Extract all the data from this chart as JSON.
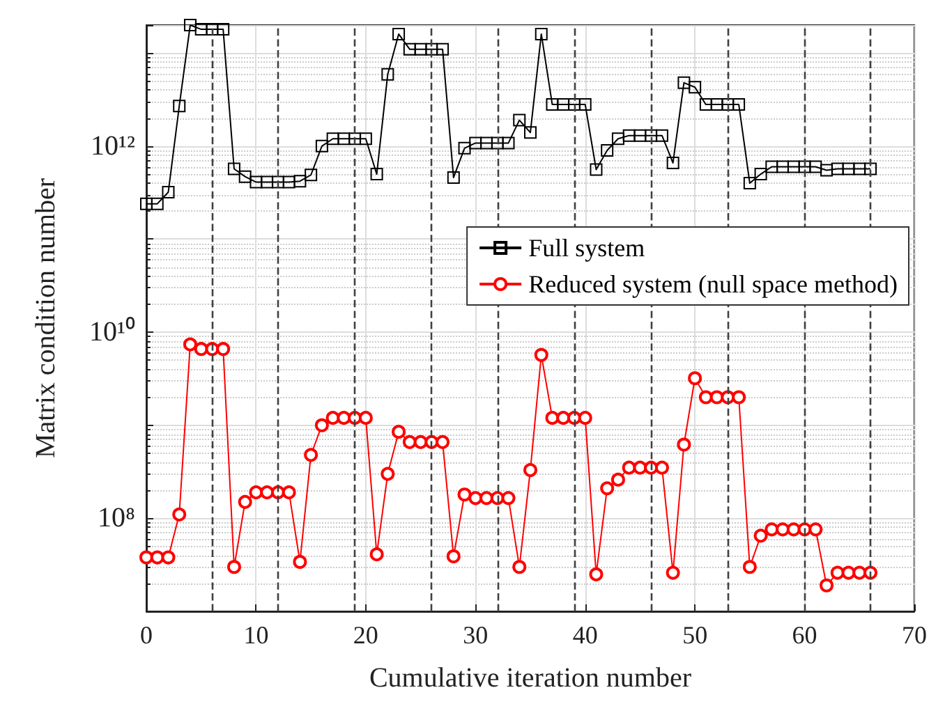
{
  "chart_data": {
    "type": "line",
    "xlabel": "Cumulative iteration number",
    "ylabel": "Matrix condition number",
    "x": [
      0,
      1,
      2,
      3,
      4,
      5,
      6,
      7,
      8,
      9,
      10,
      11,
      12,
      13,
      14,
      15,
      16,
      17,
      18,
      19,
      20,
      21,
      22,
      23,
      24,
      25,
      26,
      27,
      28,
      29,
      30,
      31,
      32,
      33,
      34,
      35,
      36,
      37,
      38,
      39,
      40,
      41,
      42,
      43,
      44,
      45,
      46,
      47,
      48,
      49,
      50,
      51,
      52,
      53,
      54,
      55,
      56,
      57,
      58,
      59,
      60,
      61,
      62,
      63,
      64,
      65,
      66
    ],
    "series": [
      {
        "name": "Full system",
        "color": "#000000",
        "marker": "square",
        "values": [
          240000000000.0,
          240000000000.0,
          320000000000.0,
          2700000000000.0,
          20000000000000.0,
          18000000000000.0,
          18000000000000.0,
          18000000000000.0,
          570000000000.0,
          470000000000.0,
          410000000000.0,
          410000000000.0,
          410000000000.0,
          410000000000.0,
          420000000000.0,
          490000000000.0,
          1000000000000.0,
          1200000000000.0,
          1200000000000.0,
          1200000000000.0,
          1200000000000.0,
          500000000000.0,
          5900000000000.0,
          16000000000000.0,
          11000000000000.0,
          11000000000000.0,
          11000000000000.0,
          11000000000000.0,
          460000000000.0,
          950000000000.0,
          1080000000000.0,
          1080000000000.0,
          1080000000000.0,
          1080000000000.0,
          1900000000000.0,
          1400000000000.0,
          16000000000000.0,
          2800000000000.0,
          2800000000000.0,
          2800000000000.0,
          2800000000000.0,
          560000000000.0,
          900000000000.0,
          1200000000000.0,
          1300000000000.0,
          1300000000000.0,
          1300000000000.0,
          1300000000000.0,
          660000000000.0,
          4800000000000.0,
          4300000000000.0,
          2800000000000.0,
          2800000000000.0,
          2800000000000.0,
          2800000000000.0,
          400000000000.0,
          500000000000.0,
          600000000000.0,
          600000000000.0,
          600000000000.0,
          600000000000.0,
          600000000000.0,
          550000000000.0,
          570000000000.0,
          570000000000.0,
          570000000000.0,
          570000000000.0
        ]
      },
      {
        "name": "Reduced system (null space method)",
        "color": "#ff0000",
        "marker": "circle",
        "values": [
          38000000.0,
          38000000.0,
          38000000.0,
          110000000.0,
          7400000000.0,
          6600000000.0,
          6600000000.0,
          6600000000.0,
          30000000.0,
          150000000.0,
          190000000.0,
          190000000.0,
          190000000.0,
          190000000.0,
          34000000.0,
          480000000.0,
          1000000000.0,
          1200000000.0,
          1200000000.0,
          1200000000.0,
          1200000000.0,
          41000000.0,
          300000000.0,
          850000000.0,
          660000000.0,
          660000000.0,
          660000000.0,
          660000000.0,
          39000000.0,
          180000000.0,
          165000000.0,
          165000000.0,
          165000000.0,
          165000000.0,
          30000000.0,
          330000000.0,
          5700000000.0,
          1200000000.0,
          1200000000.0,
          1200000000.0,
          1200000000.0,
          25000000.0,
          210000000.0,
          260000000.0,
          350000000.0,
          350000000.0,
          350000000.0,
          350000000.0,
          26000000.0,
          620000000.0,
          3200000000.0,
          2000000000.0,
          2000000000.0,
          2000000000.0,
          2000000000.0,
          30000000.0,
          65000000.0,
          76000000.0,
          76000000.0,
          76000000.0,
          76000000.0,
          76000000.0,
          19000000.0,
          26000000.0,
          26000000.0,
          26000000.0,
          26000000.0
        ]
      }
    ],
    "log": "y",
    "xlim": [
      0,
      70
    ],
    "xticks": [
      0,
      10,
      20,
      30,
      40,
      50,
      60,
      70
    ],
    "ylim": [
      10000000.0,
      20000000000000.0
    ],
    "yticks": [
      {
        "value": 100000000.0,
        "label": "10⁸"
      },
      {
        "value": 10000000000.0,
        "label": "10¹⁰"
      },
      {
        "value": 1000000000000.0,
        "label": "10¹²"
      }
    ],
    "grid": true,
    "legend": "right",
    "ref_lines": [
      {
        "axis": "x",
        "value": 6,
        "color": "#404040",
        "line_style": "dashed"
      },
      {
        "axis": "x",
        "value": 12,
        "color": "#404040",
        "line_style": "dashed"
      },
      {
        "axis": "x",
        "value": 19,
        "color": "#404040",
        "line_style": "dashed"
      },
      {
        "axis": "x",
        "value": 26,
        "color": "#404040",
        "line_style": "dashed"
      },
      {
        "axis": "x",
        "value": 32,
        "color": "#404040",
        "line_style": "dashed"
      },
      {
        "axis": "x",
        "value": 39,
        "color": "#404040",
        "line_style": "dashed"
      },
      {
        "axis": "x",
        "value": 46,
        "color": "#404040",
        "line_style": "dashed"
      },
      {
        "axis": "x",
        "value": 53,
        "color": "#404040",
        "line_style": "dashed"
      },
      {
        "axis": "x",
        "value": 60,
        "color": "#404040",
        "line_style": "dashed"
      },
      {
        "axis": "x",
        "value": 66,
        "color": "#404040",
        "line_style": "dashed"
      }
    ]
  }
}
